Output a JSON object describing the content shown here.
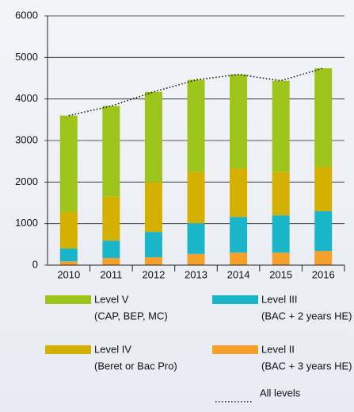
{
  "chart_data": {
    "type": "bar",
    "stacked": true,
    "categories": [
      "2010",
      "2011",
      "2012",
      "2013",
      "2014",
      "2015",
      "2016"
    ],
    "series": [
      {
        "name": "Level II",
        "detail": "(BAC + 3 years HE)",
        "color": "#f5a02a",
        "values": [
          90,
          170,
          190,
          270,
          300,
          300,
          340
        ]
      },
      {
        "name": "Level III",
        "detail": "(BAC + 2 years HE)",
        "color": "#1bb5c9",
        "values": [
          310,
          420,
          610,
          740,
          860,
          900,
          960
        ]
      },
      {
        "name": "Level IV",
        "detail": "(Beret or Bac Pro)",
        "color": "#d4b000",
        "values": [
          880,
          1060,
          1190,
          1230,
          1170,
          1040,
          1070
        ]
      },
      {
        "name": "Level V",
        "detail": "(CAP, BEP, MC)",
        "color": "#9dc41a",
        "values": [
          2320,
          2180,
          2180,
          2220,
          2260,
          2200,
          2370
        ]
      },
      {
        "name": "All levels",
        "type": "line",
        "color": "#111111",
        "values": [
          3600,
          3830,
          4170,
          4460,
          4590,
          4440,
          4740
        ]
      }
    ],
    "ylim": [
      0,
      6000
    ],
    "yticks": [
      0,
      1000,
      2000,
      3000,
      4000,
      5000,
      6000
    ],
    "grid": true
  }
}
